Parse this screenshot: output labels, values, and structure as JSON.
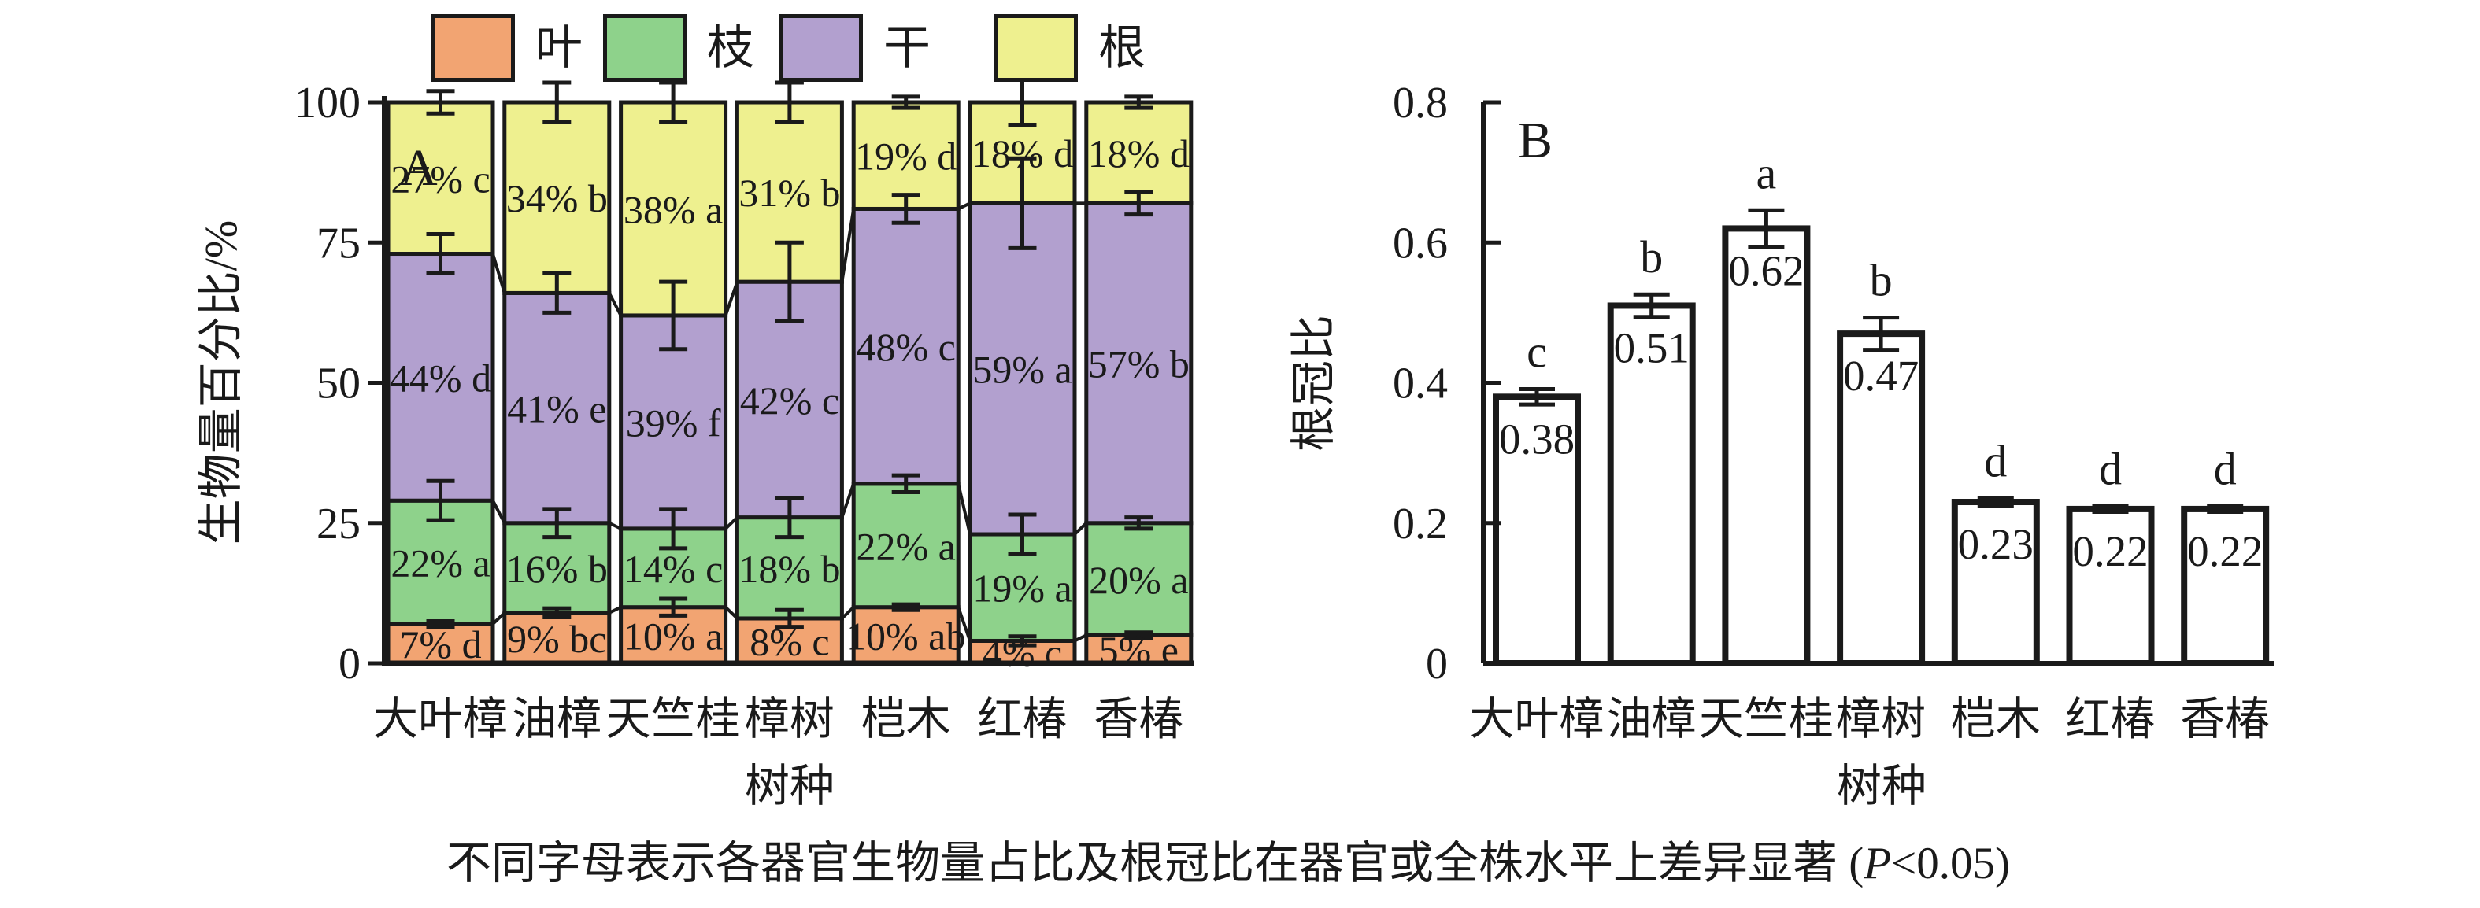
{
  "figure": {
    "panel_a_label": "A",
    "panel_b_label": "B",
    "caption": {
      "prefix": "不同字母表示各器官生物量占比及根冠比在器官或全株水平上差异显著 (",
      "p_italic": "P",
      "suffix": "<0.05)"
    }
  },
  "legend": {
    "items": [
      {
        "label": "叶",
        "color": "#F2A472"
      },
      {
        "label": "枝",
        "color": "#8ED28B"
      },
      {
        "label": "干",
        "color": "#B2A0CF"
      },
      {
        "label": "根",
        "color": "#EEF08F"
      }
    ]
  },
  "chart_data": [
    {
      "id": "A",
      "type": "bar",
      "subtype": "stacked-percent-with-errors",
      "xlabel": "树种",
      "ylabel": "生物量百分比/%",
      "ylim": [
        0,
        100
      ],
      "yticks": [
        0,
        25,
        50,
        75,
        100
      ],
      "ytick_labels": [
        "0",
        "25",
        "50",
        "75",
        "100"
      ],
      "grid": false,
      "categories": [
        "大叶樟",
        "油樟",
        "天竺桂",
        "樟树",
        "桤木",
        "红椿",
        "香椿"
      ],
      "series": [
        {
          "name": "叶",
          "color": "#F2A472",
          "values": [
            7,
            9,
            10,
            8,
            10,
            4,
            5
          ],
          "labels": [
            "7% d",
            "9% bc",
            "10% a",
            "8% c",
            "10% ab",
            "4% c",
            "5% e"
          ]
        },
        {
          "name": "枝",
          "color": "#8ED28B",
          "values": [
            22,
            16,
            14,
            18,
            22,
            19,
            20
          ],
          "labels": [
            "22% a",
            "16% b",
            "14% c",
            "18% b",
            "22% a",
            "19% a",
            "20% a"
          ]
        },
        {
          "name": "干",
          "color": "#B2A0CF",
          "values": [
            44,
            41,
            39,
            42,
            48,
            59,
            57
          ],
          "labels": [
            "44% d",
            "41% e",
            "39% f",
            "42% c",
            "48% c",
            "59% a",
            "57% b"
          ]
        },
        {
          "name": "根",
          "color": "#EEF08F",
          "values": [
            27,
            34,
            38,
            31,
            19,
            18,
            18
          ],
          "labels": [
            "27% c",
            "34% b",
            "38% a",
            "31% b",
            "19% d",
            "18% d",
            "18% d"
          ]
        }
      ],
      "cumulative_tops": [
        [
          7,
          29,
          73,
          100
        ],
        [
          9,
          25,
          66,
          100
        ],
        [
          10,
          24,
          62,
          100
        ],
        [
          8,
          26,
          68,
          100
        ],
        [
          10,
          32,
          81,
          100
        ],
        [
          4,
          23,
          82,
          100
        ],
        [
          5,
          25,
          82,
          100
        ]
      ],
      "error_bars_pct": [
        [
          0.5,
          3.5,
          3.5,
          2.0
        ],
        [
          0.8,
          2.5,
          3.5,
          3.5
        ],
        [
          1.5,
          3.5,
          6.0,
          3.5
        ],
        [
          1.5,
          3.5,
          7.0,
          3.5
        ],
        [
          0.5,
          1.5,
          2.5,
          1.0
        ],
        [
          0.8,
          3.5,
          8.0,
          4.0
        ],
        [
          0.5,
          1.0,
          2.0,
          1.0
        ]
      ]
    },
    {
      "id": "B",
      "type": "bar",
      "subtype": "simple-with-errors",
      "xlabel": "树种",
      "ylabel": "根冠比",
      "ylim": [
        0,
        0.8
      ],
      "yticks": [
        0,
        0.2,
        0.4,
        0.6,
        0.8
      ],
      "ytick_labels": [
        "0",
        "0.2",
        "0.4",
        "0.6",
        "0.8"
      ],
      "grid": false,
      "categories": [
        "大叶樟",
        "油樟",
        "天竺桂",
        "樟树",
        "桤木",
        "红椿",
        "香椿"
      ],
      "values": [
        0.38,
        0.51,
        0.62,
        0.47,
        0.23,
        0.22,
        0.22
      ],
      "value_labels": [
        "0.38",
        "0.51",
        "0.62",
        "0.47",
        "0.23",
        "0.22",
        "0.22"
      ],
      "sig_letters": [
        "c",
        "b",
        "a",
        "b",
        "d",
        "d",
        "d"
      ],
      "errors": [
        0.011,
        0.016,
        0.026,
        0.023,
        0.005,
        0.004,
        0.004
      ],
      "bar_fill": "#FFFFFF",
      "bar_stroke": "#1a1a1a"
    }
  ]
}
